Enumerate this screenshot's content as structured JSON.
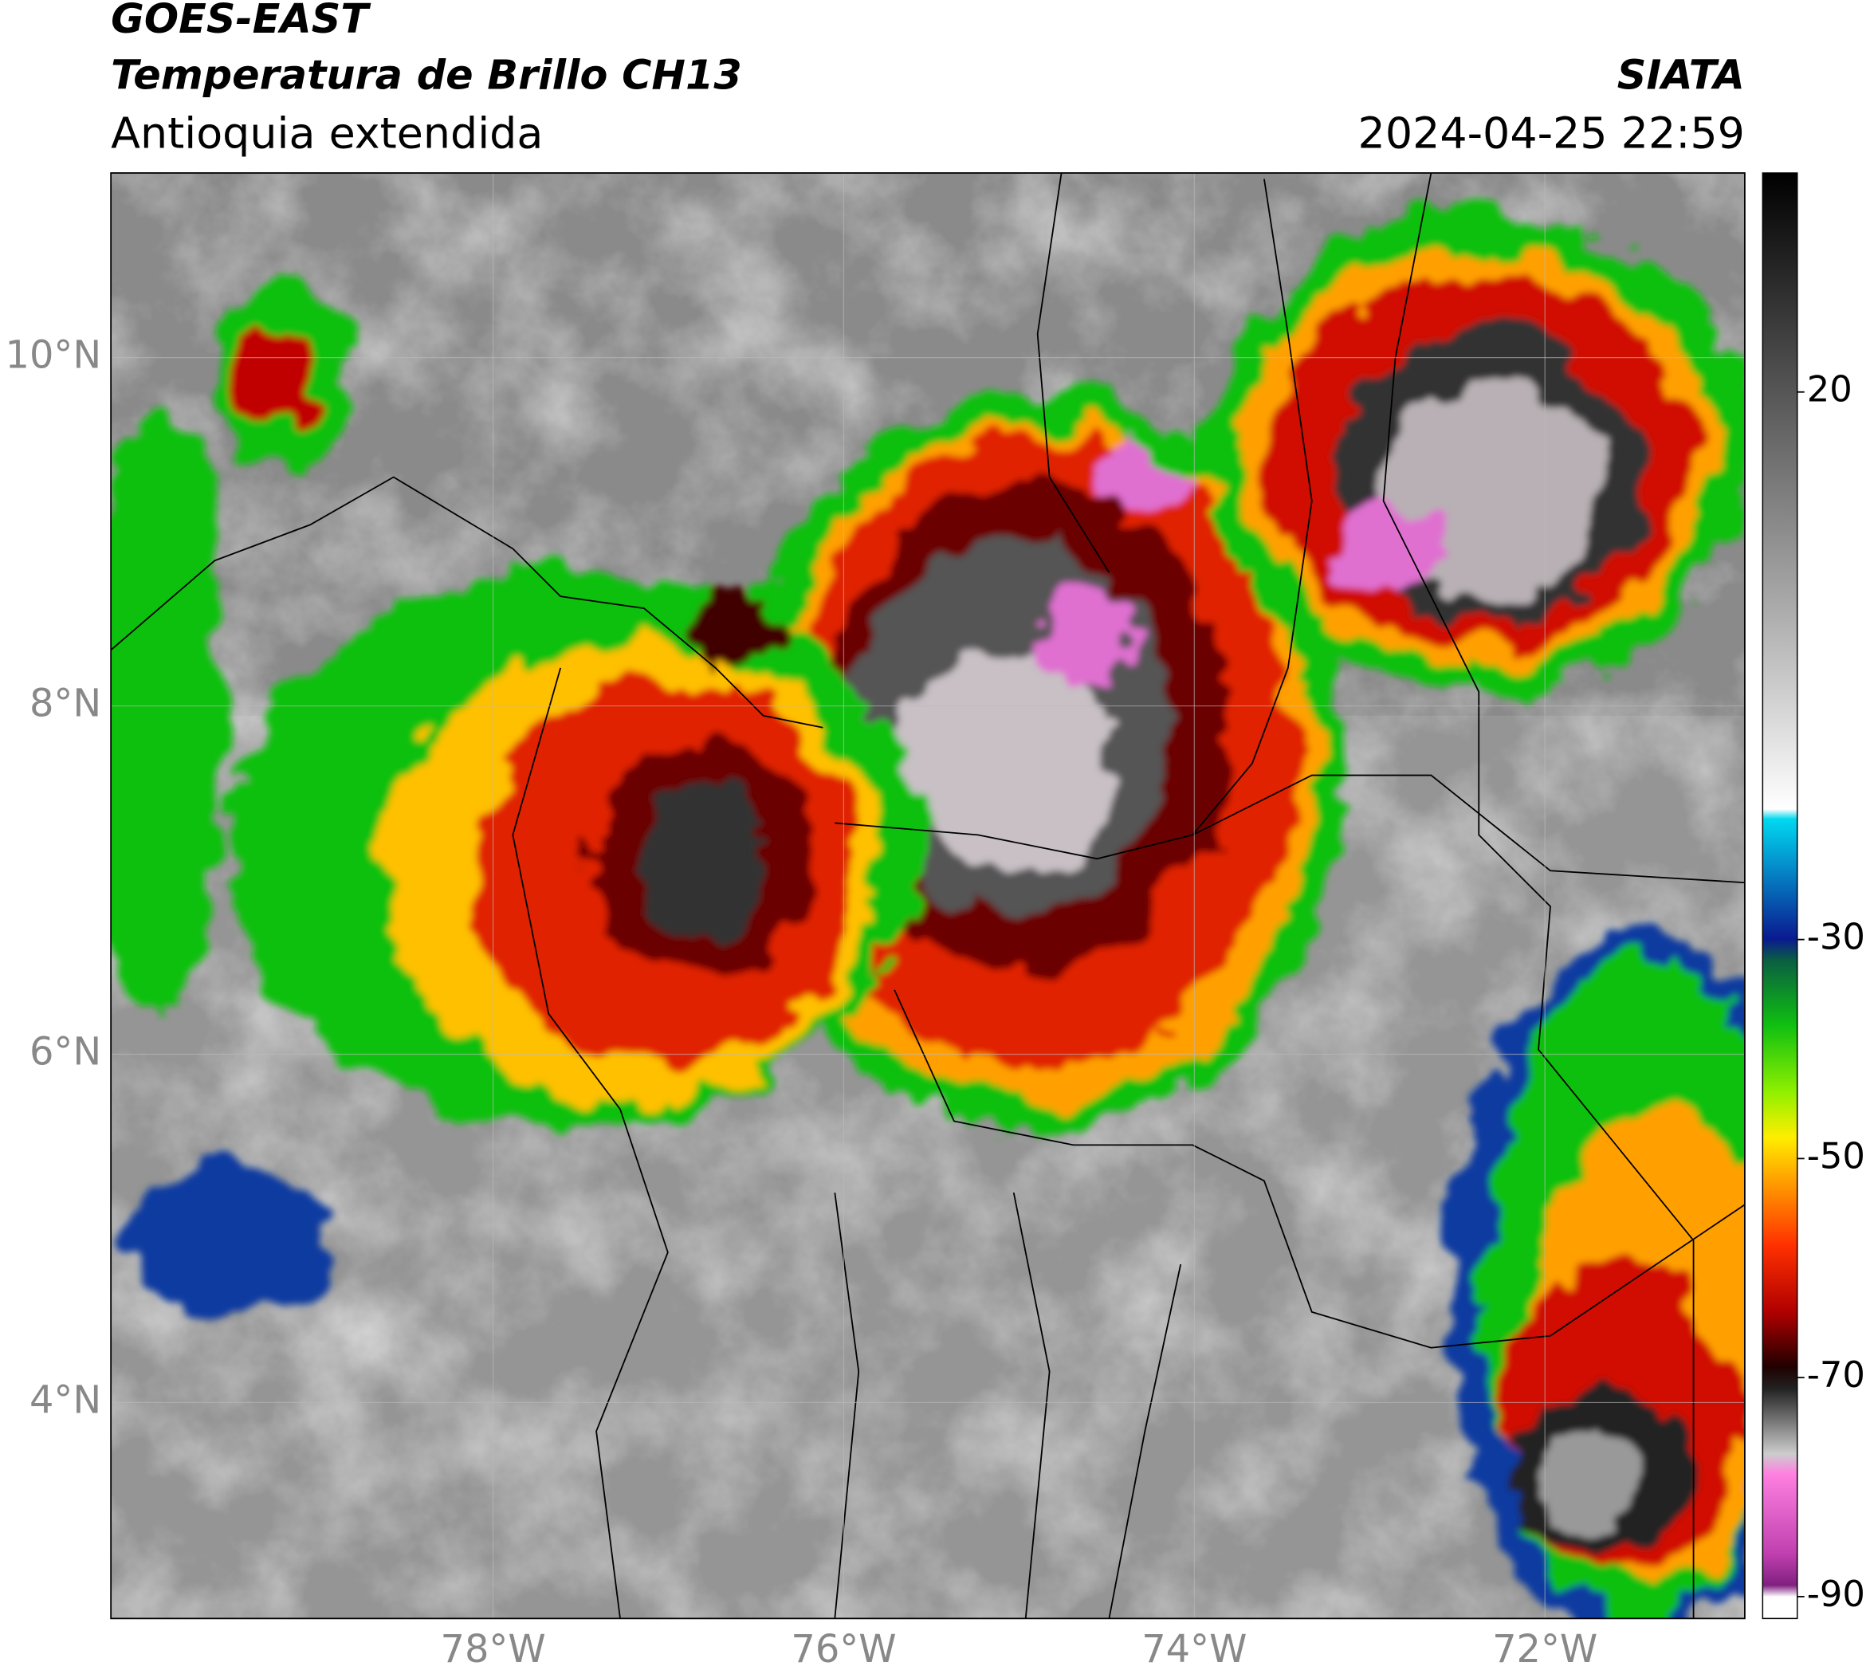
{
  "chart_data": {
    "type": "map",
    "title": "GOES-EAST",
    "subtitle": "Temperatura de Brillo CH13",
    "region": "Antioquia extendida",
    "source": "SIATA",
    "timestamp": "2024-04-25 22:59",
    "xlim": [
      -80.18,
      -70.86
    ],
    "ylim": [
      2.76,
      11.06
    ],
    "xticks": [
      {
        "value": -78,
        "label": "78°W"
      },
      {
        "value": -76,
        "label": "76°W"
      },
      {
        "value": -74,
        "label": "74°W"
      },
      {
        "value": -72,
        "label": "72°W"
      }
    ],
    "yticks": [
      {
        "value": 4,
        "label": "4°N"
      },
      {
        "value": 6,
        "label": "6°N"
      },
      {
        "value": 8,
        "label": "8°N"
      },
      {
        "value": 10,
        "label": "10°N"
      }
    ],
    "grid": true,
    "colorbar": {
      "lim": [
        -92,
        40
      ],
      "ticks": [
        20,
        -30,
        -50,
        -70,
        -90
      ]
    }
  }
}
